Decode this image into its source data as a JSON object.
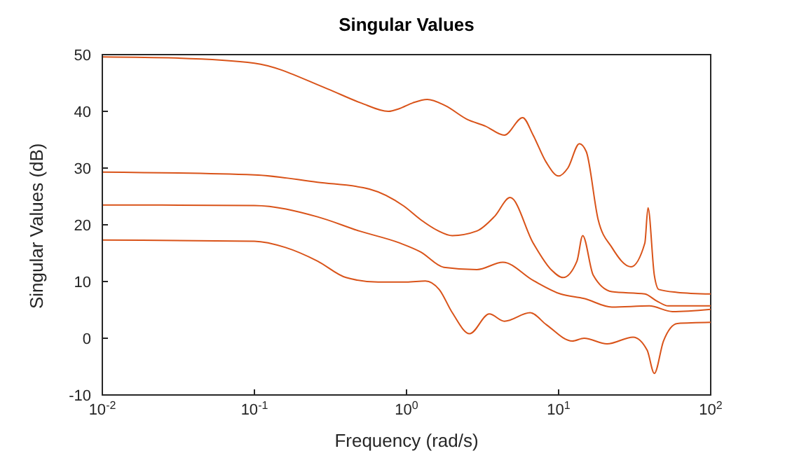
{
  "chart_data": {
    "type": "line",
    "title": "Singular Values",
    "xlabel": "Frequency (rad/s)",
    "ylabel": "Singular Values (dB)",
    "log": "x",
    "grid": false,
    "line_style": "solid",
    "marker": "none",
    "xlim": [
      0.01,
      100
    ],
    "xticks": [
      {
        "value": 0.01,
        "label": "10$^{-2}$"
      },
      {
        "value": 0.1,
        "label": "10$^{-1}$"
      },
      {
        "value": 1,
        "label": "10$^{0}$"
      },
      {
        "value": 10,
        "label": "10$^{1}$"
      },
      {
        "value": 100,
        "label": "10$^{2}$"
      }
    ],
    "ylim": [
      -10,
      50
    ],
    "yticks": [
      -10,
      0,
      10,
      20,
      30,
      40,
      50
    ],
    "series": [
      {
        "color": "#d95319",
        "x": [
          0.01,
          0.03,
          0.1,
          0.3,
          0.5,
          0.76,
          0.9,
          1.1,
          1.37,
          1.8,
          2.5,
          3.3,
          4.4,
          5.8,
          6.8,
          8.3,
          10,
          11.5,
          13.7,
          15.2,
          18.2,
          22.4,
          29.9,
          36.9,
          38.7,
          42.6,
          45.6,
          60,
          100
        ],
        "values": [
          49.6,
          49.4,
          48.5,
          44,
          41.5,
          40,
          40.5,
          41.5,
          42.1,
          41,
          38.6,
          37.4,
          35.8,
          38.9,
          35.8,
          31,
          28.6,
          30,
          34.3,
          32.9,
          20.9,
          16,
          12.6,
          16.8,
          23,
          11.1,
          8.6,
          8.1,
          7.8
        ]
      },
      {
        "color": "#d95319",
        "x": [
          0.01,
          0.1,
          0.26,
          0.57,
          0.96,
          1.24,
          1.6,
          2.0,
          2.9,
          3.8,
          4.8,
          6.8,
          9,
          10.7,
          13.2,
          14.4,
          16.9,
          22.4,
          36.9,
          44,
          52.6,
          100
        ],
        "values": [
          29.3,
          28.8,
          27.5,
          26.3,
          23.3,
          20.9,
          19,
          18.1,
          18.9,
          21.5,
          24.8,
          16.8,
          12,
          10.7,
          13.6,
          18.1,
          11.1,
          8.2,
          7.8,
          6.6,
          5.7,
          5.7
        ]
      },
      {
        "color": "#d95319",
        "x": [
          0.01,
          0.1,
          0.26,
          0.49,
          0.9,
          1.24,
          1.76,
          2.9,
          4.3,
          6.8,
          10.3,
          14.7,
          22.4,
          39.5,
          56,
          100
        ],
        "values": [
          23.5,
          23.4,
          21.4,
          18.9,
          16.8,
          15.2,
          12.5,
          12.1,
          13.4,
          10.2,
          7.8,
          7,
          5.5,
          5.7,
          4.7,
          5.1
        ]
      },
      {
        "color": "#d95319",
        "x": [
          0.01,
          0.1,
          0.16,
          0.26,
          0.4,
          0.65,
          1.0,
          1.33,
          1.64,
          2.0,
          2.6,
          3.5,
          4.4,
          6.5,
          8.3,
          12.3,
          14.7,
          20.8,
          30.9,
          38.2,
          42.6,
          48.9,
          60.4,
          100
        ],
        "values": [
          17.3,
          17.1,
          16,
          13.6,
          10.7,
          9.9,
          9.9,
          10.1,
          8.6,
          4.5,
          0.8,
          4.3,
          3,
          4.5,
          2.4,
          -0.5,
          0,
          -1,
          0.2,
          -2.1,
          -6.2,
          -0.5,
          2.6,
          2.8
        ]
      }
    ]
  }
}
